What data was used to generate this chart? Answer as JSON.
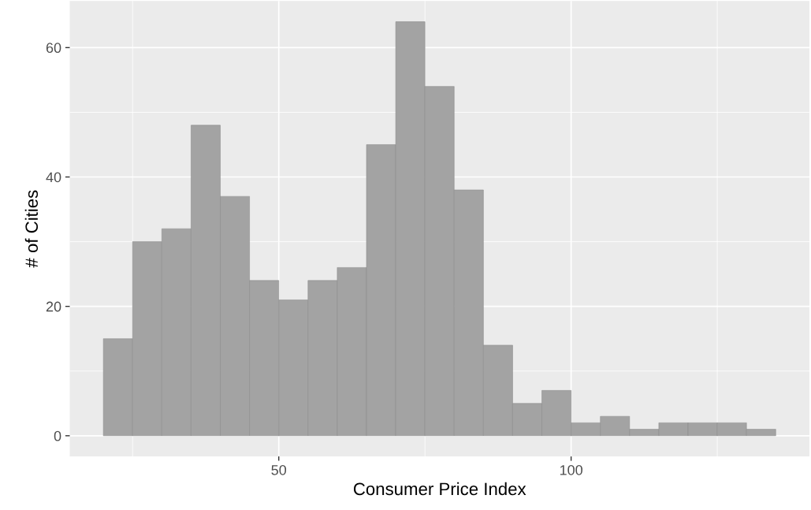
{
  "chart_data": {
    "type": "histogram",
    "xlabel": "Consumer Price Index",
    "ylabel": "# of Cities",
    "bins": [
      20,
      25,
      30,
      35,
      40,
      45,
      50,
      55,
      60,
      65,
      70,
      75,
      80,
      85,
      90,
      95,
      100,
      105,
      110,
      115,
      120,
      125,
      130,
      135
    ],
    "values": [
      15,
      30,
      32,
      48,
      37,
      24,
      21,
      24,
      26,
      45,
      64,
      54,
      38,
      14,
      5,
      7,
      2,
      3,
      1,
      2,
      2,
      2,
      1
    ],
    "color": "#a3a3a3",
    "xlim": [
      14.25,
      140.75
    ],
    "xticks": [
      50,
      100
    ],
    "ylim": [
      -3.2,
      67.2
    ],
    "yticks": [
      0,
      20,
      40,
      60
    ],
    "grid": true
  }
}
